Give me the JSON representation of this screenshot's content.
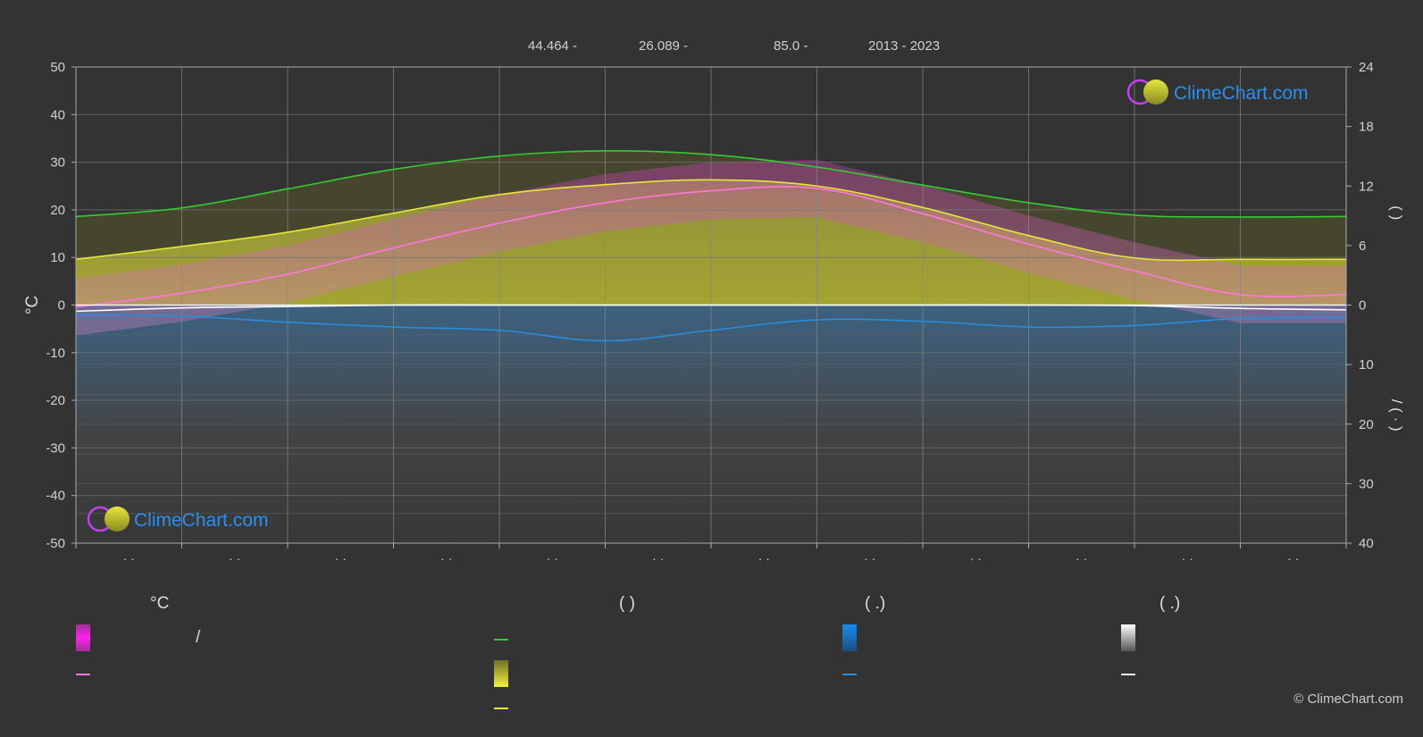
{
  "header": {
    "lat": "44.464 -",
    "lon": "26.089 -",
    "elev": "85.0 -",
    "years": "2013 - 2023"
  },
  "brand": {
    "name": "ClimeChart.com",
    "copyright": "© ClimeChart.com"
  },
  "chart_data": {
    "type": "line",
    "title": "",
    "ylabel_left": "°C",
    "ylabel_right_top": "(    )",
    "ylabel_right_bottom": "/    (  ·  )",
    "ylim_left": [
      -50,
      50
    ],
    "yticks_left": [
      "50",
      "40",
      "30",
      "20",
      "10",
      "0",
      "-10",
      "-20",
      "-30",
      "-40",
      "-50"
    ],
    "yticks_right_top": [
      "24",
      "18",
      "12",
      "6",
      "0"
    ],
    "yticks_right_bottom": [
      "10",
      "20",
      "30",
      "40"
    ],
    "month_labels": [
      "· ·",
      "· ·",
      "· ·",
      "· ·",
      "· ·",
      "· ·",
      "· ·",
      "· ·",
      "· ·",
      "· ·",
      "· ·",
      "· ·"
    ],
    "x": [
      0,
      1,
      2,
      3,
      4,
      5,
      6,
      7,
      8,
      9,
      10,
      11,
      12
    ],
    "series": [
      {
        "key": "daylight",
        "color": "#33cc33",
        "values": [
          18.6,
          20.4,
          24.4,
          28.5,
          31.3,
          32.4,
          31.6,
          29.0,
          25.2,
          21.5,
          18.9,
          18.5,
          18.6
        ]
      },
      {
        "key": "sunshine",
        "color": "#e8e83a",
        "values": [
          9.6,
          12.3,
          15.3,
          19.3,
          23.2,
          25.3,
          26.3,
          25.0,
          20.5,
          14.6,
          9.9,
          9.6,
          9.6
        ]
      },
      {
        "key": "temp",
        "color": "#ff77dd",
        "values": [
          -0.4,
          2.5,
          6.5,
          12.0,
          17.2,
          21.5,
          24.0,
          24.5,
          19.2,
          12.8,
          7.2,
          2.2,
          2.2
        ]
      },
      {
        "key": "precip",
        "color": "#2a8cdd",
        "values": [
          -2.1,
          -2.3,
          -3.6,
          -4.6,
          -5.3,
          -7.5,
          -5.3,
          -3.1,
          -3.4,
          -4.6,
          -4.3,
          -2.8,
          -2.6
        ]
      },
      {
        "key": "snow",
        "color": "#ffffff",
        "values": [
          -1.3,
          -0.6,
          -0.3,
          0,
          0,
          0,
          0,
          0,
          0,
          0,
          -0.1,
          -0.7,
          -1.0
        ]
      }
    ],
    "bands": {
      "sunshine_fill_color": "#b7b732",
      "temp_fill_color": "#c13ab0",
      "precip_fill_color": "#1e5a88",
      "snow_fill_color": "#8a8a8a"
    },
    "grid": true
  },
  "legend": {
    "col1_heading": "°C",
    "col1_swatch_sep": "/",
    "col2_heading": "(          )",
    "col3_heading": "(    .)",
    "col4_heading": "(    .)",
    "colors": {
      "magenta": "#e020d0",
      "pink": "#ff77dd",
      "green": "#33cc33",
      "yellow": "#e8e83a",
      "blue": "#2a8cdd",
      "white": "#ffffff"
    }
  }
}
